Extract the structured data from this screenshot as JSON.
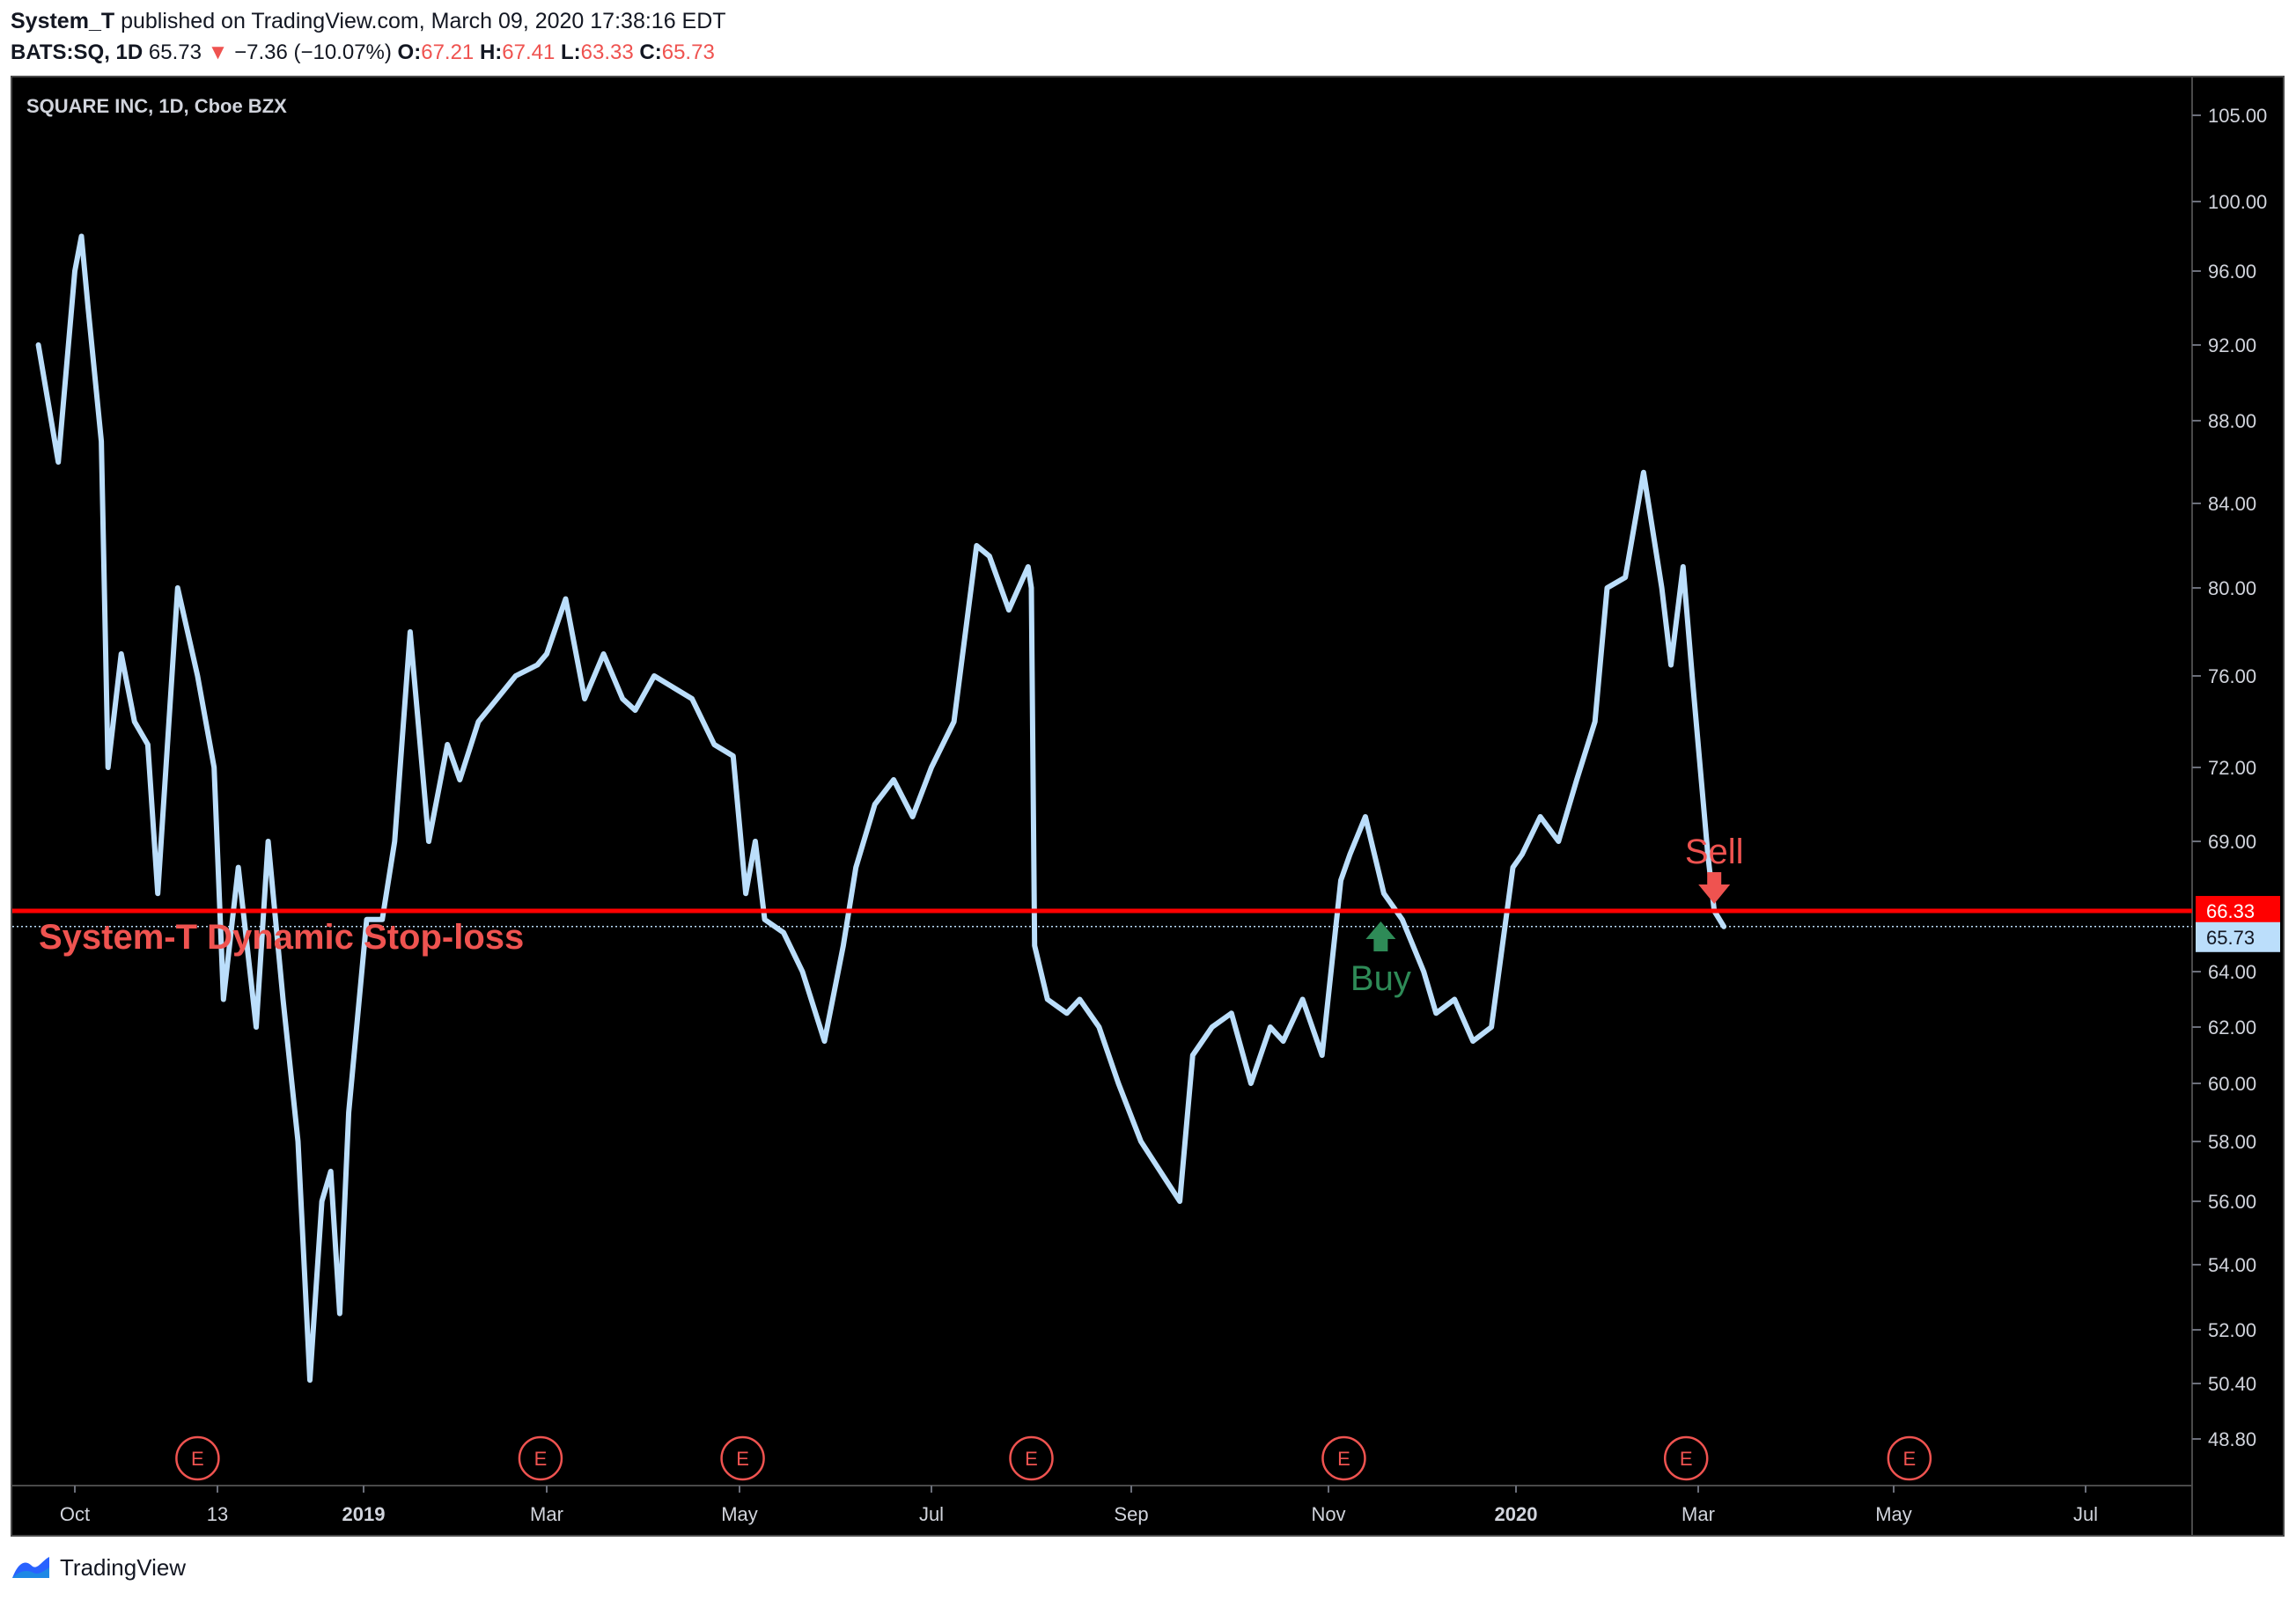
{
  "header": {
    "author": "System_T",
    "published_text": "published on TradingView.com, March 09, 2020 17:38:16 EDT",
    "symbol": "BATS:SQ, 1D",
    "last": "65.73",
    "arrow": "▼",
    "change": "−7.36 (−10.07%)",
    "o_label": "O:",
    "o": "67.21",
    "h_label": "H:",
    "h": "67.41",
    "l_label": "L:",
    "l": "63.33",
    "c_label": "C:",
    "c": "65.73"
  },
  "footer": {
    "brand": "TradingView"
  },
  "chart_data": {
    "type": "line",
    "title": "SQUARE INC, 1D, Cboe BZX",
    "price_ticks": [
      "105.00",
      "100.00",
      "96.00",
      "92.00",
      "88.00",
      "84.00",
      "80.00",
      "76.00",
      "72.00",
      "69.00",
      "64.00",
      "62.00",
      "60.00",
      "58.00",
      "56.00",
      "54.00",
      "52.00",
      "50.40",
      "48.80"
    ],
    "time_ticks": [
      "Oct",
      "13",
      "2019",
      "Mar",
      "May",
      "Jul",
      "Sep",
      "Nov",
      "2020",
      "Mar",
      "May",
      "Jul"
    ],
    "time_ticks_bold": [
      "2019",
      "2020"
    ],
    "series": [
      {
        "x": [
          "2018-09-20",
          "2018-09-26",
          "2018-10-01",
          "2018-10-03",
          "2018-10-05",
          "2018-10-09",
          "2018-10-11",
          "2018-10-15",
          "2018-10-19",
          "2018-10-23",
          "2018-10-26",
          "2018-11-01",
          "2018-11-07",
          "2018-11-12",
          "2018-11-15",
          "2018-11-20",
          "2018-11-26",
          "2018-11-30",
          "2018-12-05",
          "2018-12-10",
          "2018-12-14",
          "2018-12-18",
          "2018-12-21",
          "2018-12-24",
          "2018-12-27",
          "2019-01-02",
          "2019-01-07",
          "2019-01-11",
          "2019-01-16",
          "2019-01-22",
          "2019-01-28",
          "2019-02-01",
          "2019-02-07",
          "2019-02-13",
          "2019-02-19",
          "2019-02-26",
          "2019-03-01",
          "2019-03-07",
          "2019-03-13",
          "2019-03-19",
          "2019-03-25",
          "2019-03-29",
          "2019-04-04",
          "2019-04-10",
          "2019-04-16",
          "2019-04-23",
          "2019-04-29",
          "2019-05-03",
          "2019-05-06",
          "2019-05-09",
          "2019-05-15",
          "2019-05-21",
          "2019-05-28",
          "2019-06-03",
          "2019-06-07",
          "2019-06-13",
          "2019-06-19",
          "2019-06-25",
          "2019-07-01",
          "2019-07-08",
          "2019-07-15",
          "2019-07-19",
          "2019-07-25",
          "2019-07-31",
          "2019-08-01",
          "2019-08-02",
          "2019-08-06",
          "2019-08-12",
          "2019-08-16",
          "2019-08-22",
          "2019-08-28",
          "2019-09-04",
          "2019-09-10",
          "2019-09-16",
          "2019-09-20",
          "2019-09-26",
          "2019-10-02",
          "2019-10-08",
          "2019-10-14",
          "2019-10-18",
          "2019-10-24",
          "2019-10-30",
          "2019-11-05",
          "2019-11-08",
          "2019-11-13",
          "2019-11-19",
          "2019-11-25",
          "2019-12-02",
          "2019-12-06",
          "2019-12-12",
          "2019-12-18",
          "2019-12-24",
          "2019-12-31",
          "2020-01-03",
          "2020-01-09",
          "2020-01-15",
          "2020-01-21",
          "2020-01-27",
          "2020-01-31",
          "2020-02-06",
          "2020-02-12",
          "2020-02-18",
          "2020-02-21",
          "2020-02-25",
          "2020-02-28",
          "2020-03-04",
          "2020-03-06",
          "2020-03-09"
        ],
        "y": [
          92,
          86,
          96,
          98,
          94,
          87,
          72,
          77,
          74,
          73,
          67,
          80,
          76,
          72,
          63,
          68,
          62,
          69,
          63,
          58,
          50.5,
          56,
          57,
          52.5,
          59,
          66,
          66,
          69,
          78,
          69,
          73,
          71.5,
          74,
          75,
          76,
          76.5,
          77,
          79.5,
          75,
          77,
          75,
          74.5,
          76,
          75.5,
          75,
          73,
          72.5,
          67,
          69,
          66,
          65.5,
          64,
          61.5,
          65,
          68,
          70.5,
          71.5,
          70,
          72,
          74,
          82,
          81.5,
          79,
          81,
          80,
          65,
          63,
          62.5,
          63,
          62,
          60,
          58,
          57,
          56,
          61,
          62,
          62.5,
          60,
          62,
          61.5,
          63,
          61,
          67.5,
          68.5,
          70,
          67,
          66,
          64,
          62.5,
          63,
          61.5,
          62,
          68,
          68.5,
          70,
          69,
          71.5,
          74,
          80,
          80.5,
          85.5,
          80,
          76.5,
          81,
          76,
          68.5,
          66.33,
          65.73
        ]
      }
    ],
    "stop_loss": {
      "value": 66.33,
      "label": "System-T Dynamic Stop-loss"
    },
    "price_badges": [
      {
        "value": 66.33,
        "text": "66.33",
        "bg": "#ff0000",
        "fg": "#ffffff"
      },
      {
        "value": 65.73,
        "text": "65.73",
        "bg": "#bbdefb",
        "fg": "#131722"
      }
    ],
    "signals": [
      {
        "label": "Buy",
        "x": "2019-11-18",
        "y": 66.33,
        "color": "#2e8b57",
        "dir": "up"
      },
      {
        "label": "Sell",
        "x": "2020-03-06",
        "y": 66.33,
        "color": "#ef5350",
        "dir": "down"
      }
    ],
    "earnings": [
      {
        "x": "2018-11-07",
        "label": "E"
      },
      {
        "x": "2019-02-27",
        "label": "E"
      },
      {
        "x": "2019-05-02",
        "label": "E"
      },
      {
        "x": "2019-08-01",
        "label": "E"
      },
      {
        "x": "2019-11-06",
        "label": "E"
      },
      {
        "x": "2020-02-26",
        "label": "E"
      },
      {
        "x": "2020-05-06",
        "label": "E"
      }
    ],
    "colors": {
      "line": "#bbdefb",
      "stop": "#ff0000",
      "background": "#000000",
      "axis_text": "#d1d4dc",
      "earnings": "#ef5350"
    },
    "grid": false
  }
}
